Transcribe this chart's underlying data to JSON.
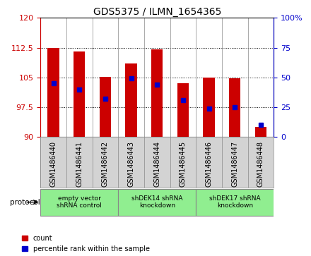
{
  "title": "GDS5375 / ILMN_1654365",
  "samples": [
    "GSM1486440",
    "GSM1486441",
    "GSM1486442",
    "GSM1486443",
    "GSM1486444",
    "GSM1486445",
    "GSM1486446",
    "GSM1486447",
    "GSM1486448"
  ],
  "counts": [
    112.5,
    111.5,
    105.2,
    108.5,
    112.0,
    103.5,
    105.0,
    104.8,
    92.5
  ],
  "percentiles": [
    45,
    40,
    32,
    49,
    44,
    31,
    24,
    25,
    10
  ],
  "ylim_left": [
    90,
    120
  ],
  "ylim_right": [
    0,
    100
  ],
  "yticks_left": [
    90,
    97.5,
    105,
    112.5,
    120
  ],
  "yticks_right": [
    0,
    25,
    50,
    75,
    100
  ],
  "left_color": "#cc0000",
  "right_color": "#0000cc",
  "bar_color": "#cc0000",
  "dot_color": "#0000cc",
  "bg_color": "#d3d3d3",
  "plot_bg": "#ffffff",
  "proto_color": "#90ee90",
  "proto_border": "#888888",
  "protocols": [
    {
      "label": "empty vector\nshRNA control",
      "start": 0,
      "end": 3
    },
    {
      "label": "shDEK14 shRNA\nknockdown",
      "start": 3,
      "end": 6
    },
    {
      "label": "shDEK17 shRNA\nknockdown",
      "start": 6,
      "end": 9
    }
  ],
  "legend_labels": [
    "count",
    "percentile rank within the sample"
  ],
  "protocol_text": "protocol",
  "figsize": [
    4.4,
    3.63
  ],
  "dpi": 100
}
